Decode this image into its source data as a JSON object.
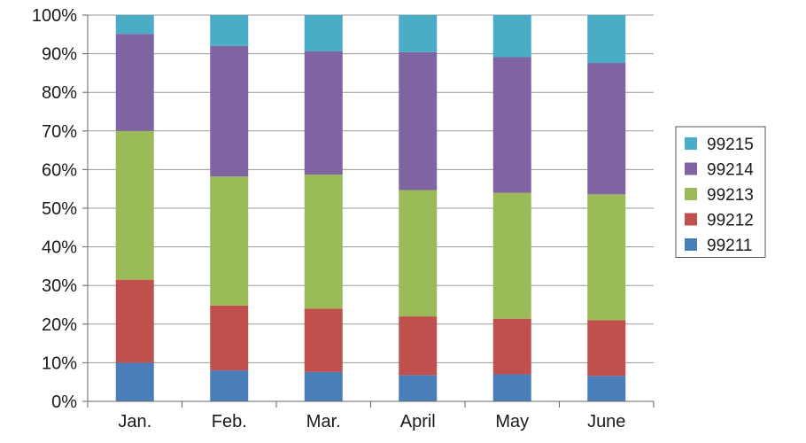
{
  "chart_data": {
    "type": "bar",
    "stacked": true,
    "percent_stacked": true,
    "categories": [
      "Jan.",
      "Feb.",
      "Mar.",
      "April",
      "May",
      "June"
    ],
    "series": [
      {
        "name": "99211",
        "color": "#4a7ebb",
        "values": [
          10.0,
          8.0,
          7.6,
          6.8,
          7.0,
          6.6
        ]
      },
      {
        "name": "99212",
        "color": "#c0504d",
        "values": [
          21.5,
          16.8,
          16.4,
          15.2,
          14.4,
          14.4
        ]
      },
      {
        "name": "99213",
        "color": "#9bbb59",
        "values": [
          38.5,
          33.4,
          34.7,
          32.7,
          32.6,
          32.6
        ]
      },
      {
        "name": "99214",
        "color": "#8064a2",
        "values": [
          25.1,
          33.8,
          31.9,
          35.7,
          35.1,
          34.0
        ]
      },
      {
        "name": "99215",
        "color": "#4bacc6",
        "values": [
          4.9,
          8.0,
          9.4,
          9.6,
          10.9,
          12.4
        ]
      }
    ],
    "y_ticks": [
      "0%",
      "10%",
      "20%",
      "30%",
      "40%",
      "50%",
      "60%",
      "70%",
      "80%",
      "90%",
      "100%"
    ],
    "ylim": [
      0,
      100
    ],
    "grid": true,
    "legend_placement": "right",
    "legend_order": [
      "99215",
      "99214",
      "99213",
      "99212",
      "99211"
    ],
    "title": "",
    "xlabel": "",
    "ylabel": ""
  }
}
